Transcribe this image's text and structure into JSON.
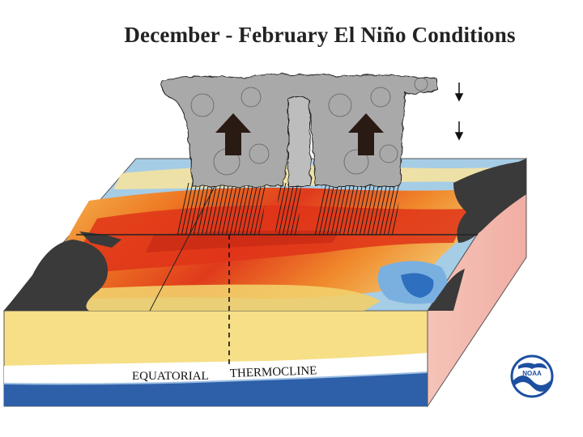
{
  "title": "December - February El Niño Conditions",
  "labels": {
    "equatorial": "EQUATORIAL",
    "thermocline": "THERMOCLINE"
  },
  "logo": {
    "text": "NOAA",
    "icon": "noaa-logo-icon"
  },
  "colors": {
    "ocean_blue": "#2f6fbf",
    "ocean_light_blue": "#a9cfe8",
    "ocean_yellow": "#f4d98a",
    "ocean_orange": "#f08a2c",
    "ocean_red": "#e23b1e",
    "land_dark": "#3a3a3a",
    "water_column_warm": "#f7e08c",
    "water_column_cold": "#2d5fa8",
    "side_pink": "#f3b9b0",
    "cloud_gray": "#a9a9a9"
  },
  "icons": [
    "updraft-arrow-icon",
    "downdraft-arrow-icon",
    "noaa-logo-icon"
  ]
}
